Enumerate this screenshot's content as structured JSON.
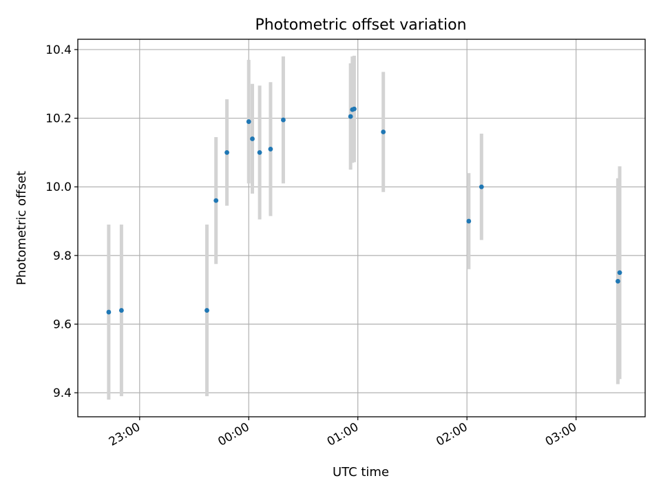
{
  "chart_data": {
    "type": "scatter",
    "title": "Photometric offset variation",
    "xlabel": "UTC time",
    "ylabel": "Photometric offset",
    "x_unit": "UTC",
    "xlim": [
      "22:26",
      "03:38"
    ],
    "ylim": [
      9.33,
      10.43
    ],
    "grid": true,
    "x_ticks": [
      "23:00",
      "00:00",
      "01:00",
      "02:00",
      "03:00"
    ],
    "y_ticks": [
      "9.4",
      "9.6",
      "9.8",
      "10.0",
      "10.2",
      "10.4"
    ],
    "colors": {
      "marker": "#1f77b4",
      "errorbar": "#d3d3d3",
      "grid": "#b0b0b0",
      "axes": "#000000"
    },
    "series": [
      {
        "points": [
          {
            "x": "22:43",
            "y": 9.635,
            "err": 0.255
          },
          {
            "x": "22:50",
            "y": 9.64,
            "err": 0.25
          },
          {
            "x": "23:37",
            "y": 9.64,
            "err": 0.25
          },
          {
            "x": "23:42",
            "y": 9.96,
            "err": 0.185
          },
          {
            "x": "23:48",
            "y": 10.1,
            "err": 0.155
          },
          {
            "x": "00:00",
            "y": 10.19,
            "err": 0.18
          },
          {
            "x": "00:02",
            "y": 10.14,
            "err": 0.16
          },
          {
            "x": "00:06",
            "y": 10.1,
            "err": 0.195
          },
          {
            "x": "00:12",
            "y": 10.11,
            "err": 0.195
          },
          {
            "x": "00:19",
            "y": 10.195,
            "err": 0.185
          },
          {
            "x": "00:56",
            "y": 10.205,
            "err": 0.155
          },
          {
            "x": "00:57",
            "y": 10.225,
            "err": 0.155
          },
          {
            "x": "00:58",
            "y": 10.227,
            "err": 0.155
          },
          {
            "x": "01:14",
            "y": 10.16,
            "err": 0.175
          },
          {
            "x": "02:01",
            "y": 9.9,
            "err": 0.14
          },
          {
            "x": "02:08",
            "y": 10.0,
            "err": 0.155
          },
          {
            "x": "03:23",
            "y": 9.725,
            "err": 0.3
          },
          {
            "x": "03:24",
            "y": 9.75,
            "err": 0.31
          }
        ]
      }
    ]
  }
}
